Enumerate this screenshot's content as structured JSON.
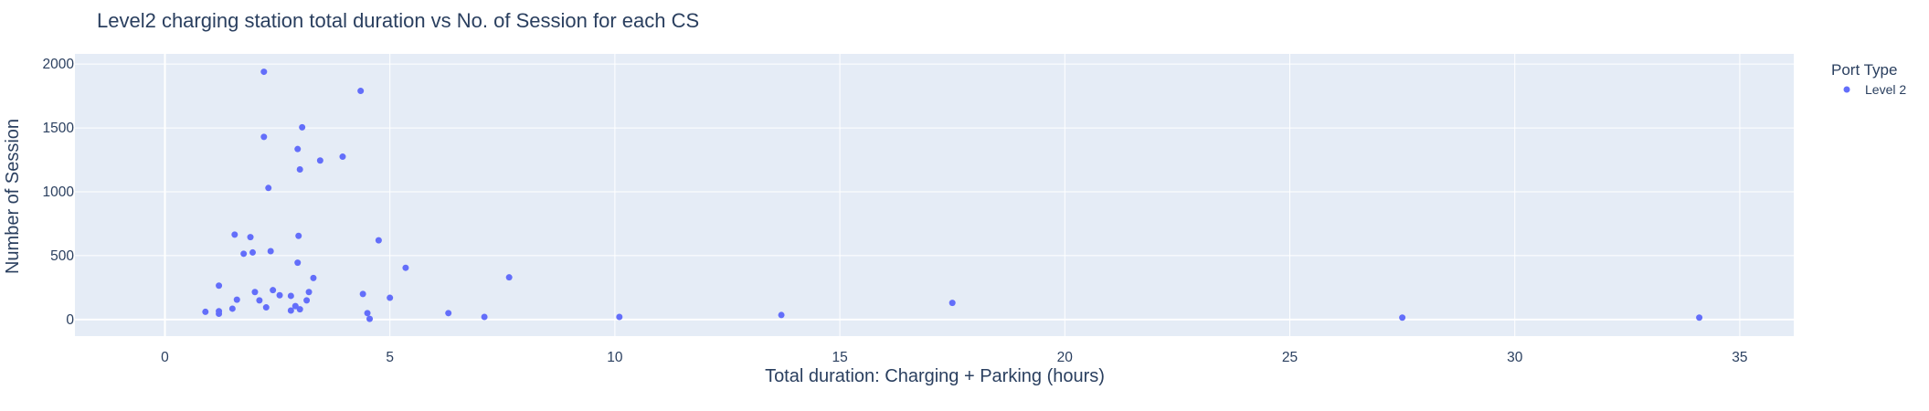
{
  "chart_data": {
    "type": "scatter",
    "title": "Level2 charging station total duration vs No. of Session for each CS",
    "xlabel": "Total duration: Charging + Parking (hours)",
    "ylabel": "Number of Session",
    "xlim": [
      -2,
      36.2
    ],
    "ylim": [
      -130,
      2080
    ],
    "xticks": [
      0,
      5,
      10,
      15,
      20,
      25,
      30,
      35
    ],
    "yticks": [
      0,
      500,
      1000,
      1500,
      2000
    ],
    "grid": true,
    "legend": {
      "title": "Port Type",
      "placement": "right"
    },
    "series": [
      {
        "name": "Level 2",
        "color": "#636efa",
        "x": [
          0.9,
          1.2,
          1.2,
          1.2,
          1.5,
          1.55,
          1.6,
          1.75,
          1.9,
          1.95,
          2.0,
          2.1,
          2.2,
          2.2,
          2.25,
          2.3,
          2.35,
          2.4,
          2.55,
          2.8,
          2.8,
          2.9,
          2.95,
          2.95,
          2.97,
          3.0,
          3.0,
          3.05,
          3.15,
          3.2,
          3.3,
          3.45,
          3.95,
          4.35,
          4.4,
          4.5,
          4.55,
          4.75,
          5.0,
          5.35,
          6.3,
          7.1,
          7.65,
          10.1,
          13.7,
          17.5,
          27.5,
          34.1
        ],
        "y": [
          60,
          65,
          45,
          265,
          85,
          665,
          155,
          515,
          645,
          525,
          215,
          150,
          1430,
          1940,
          95,
          1030,
          535,
          230,
          190,
          185,
          70,
          105,
          1335,
          445,
          655,
          80,
          1175,
          1505,
          150,
          215,
          325,
          1245,
          1275,
          1790,
          200,
          50,
          5,
          620,
          170,
          405,
          50,
          20,
          330,
          20,
          35,
          130,
          15,
          15
        ]
      }
    ]
  }
}
